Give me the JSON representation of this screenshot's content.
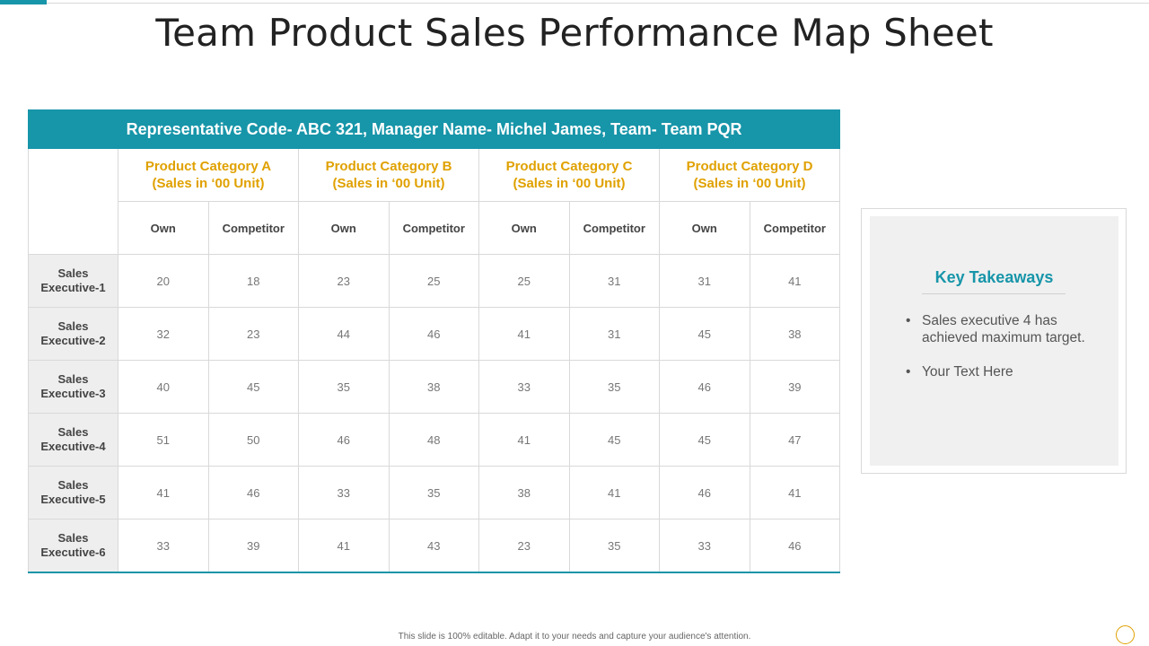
{
  "title": "Team Product Sales Performance Map Sheet",
  "table": {
    "banner": "Representative Code- ABC 321, Manager Name- Michel James, Team- Team PQR",
    "categories": [
      {
        "name": "Product Category A",
        "unit": "(Sales in ‘00 Unit)"
      },
      {
        "name": "Product Category B",
        "unit": "(Sales in ‘00 Unit)"
      },
      {
        "name": "Product Category C",
        "unit": "(Sales in ‘00 Unit)"
      },
      {
        "name": "Product Category D",
        "unit": "(Sales in ‘00 Unit)"
      }
    ],
    "sub_headers": [
      "Own",
      "Competitor",
      "Own",
      "Competitor",
      "Own",
      "Competitor",
      "Own",
      "Competitor"
    ],
    "rows": [
      {
        "label_line1": "Sales",
        "label_line2": "Executive-1",
        "values": [
          "20",
          "18",
          "23",
          "25",
          "25",
          "31",
          "31",
          "41"
        ]
      },
      {
        "label_line1": "Sales",
        "label_line2": "Executive-2",
        "values": [
          "32",
          "23",
          "44",
          "46",
          "41",
          "31",
          "45",
          "38"
        ]
      },
      {
        "label_line1": "Sales",
        "label_line2": "Executive-3",
        "values": [
          "40",
          "45",
          "35",
          "38",
          "33",
          "35",
          "46",
          "39"
        ]
      },
      {
        "label_line1": "Sales",
        "label_line2": "Executive-4",
        "values": [
          "51",
          "50",
          "46",
          "48",
          "41",
          "45",
          "45",
          "47"
        ]
      },
      {
        "label_line1": "Sales",
        "label_line2": "Executive-5",
        "values": [
          "41",
          "46",
          "33",
          "35",
          "38",
          "41",
          "46",
          "41"
        ]
      },
      {
        "label_line1": "Sales",
        "label_line2": "Executive-6",
        "values": [
          "33",
          "39",
          "41",
          "43",
          "23",
          "35",
          "33",
          "46"
        ]
      }
    ]
  },
  "takeaways": {
    "title": "Key Takeaways",
    "items": [
      "Sales executive  4 has achieved maximum target.",
      "Your Text Here"
    ]
  },
  "footer": "This slide is 100% editable. Adapt it to your needs and capture your audience's attention.",
  "colors": {
    "accent": "#1795a9",
    "category_text": "#e0a100",
    "row_header_bg": "#eeeeee",
    "panel_bg": "#f0f0f0"
  }
}
